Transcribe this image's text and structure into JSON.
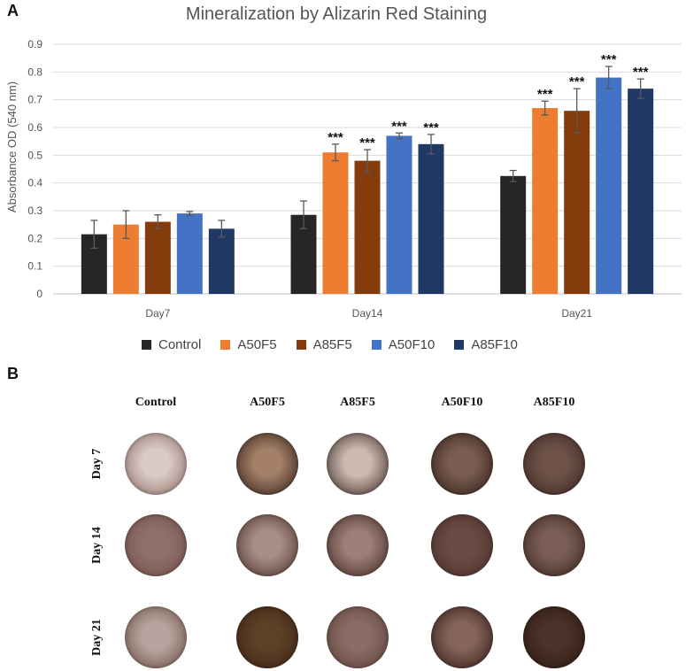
{
  "panel_a_letter": "A",
  "panel_b_letter": "B",
  "chart_data": {
    "type": "bar",
    "title": "Mineralization by Alizarin Red Staining",
    "xlabel": "",
    "ylabel": "Absorbance OD (540 nm)",
    "ylim": [
      0,
      0.9
    ],
    "yticks": [
      "0",
      "0.1",
      "0.2",
      "0.3",
      "0.4",
      "0.5",
      "0.6",
      "0.7",
      "0.8",
      "0.9"
    ],
    "grid": true,
    "legend_position": "bottom",
    "categories": [
      "Day7",
      "Day14",
      "Day21"
    ],
    "series": [
      {
        "name": "Control",
        "color": "#262626",
        "values": [
          0.215,
          0.285,
          0.425
        ],
        "errors": [
          0.05,
          0.05,
          0.02
        ],
        "significance": [
          "",
          "",
          ""
        ]
      },
      {
        "name": "A50F5",
        "color": "#ed7d31",
        "values": [
          0.25,
          0.51,
          0.67
        ],
        "errors": [
          0.05,
          0.03,
          0.025
        ],
        "significance": [
          "",
          "***",
          "***"
        ]
      },
      {
        "name": "A85F5",
        "color": "#843c0c",
        "values": [
          0.26,
          0.48,
          0.66
        ],
        "errors": [
          0.025,
          0.04,
          0.08
        ],
        "significance": [
          "",
          "***",
          "***"
        ]
      },
      {
        "name": "A50F10",
        "color": "#4472c4",
        "values": [
          0.29,
          0.57,
          0.78
        ],
        "errors": [
          0.007,
          0.01,
          0.04
        ],
        "significance": [
          "",
          "***",
          "***"
        ]
      },
      {
        "name": "A85F10",
        "color": "#203864",
        "values": [
          0.235,
          0.54,
          0.74
        ],
        "errors": [
          0.03,
          0.035,
          0.035
        ],
        "significance": [
          "",
          "***",
          "***"
        ]
      }
    ]
  },
  "staining": {
    "columns": [
      "Control",
      "A50F5",
      "A85F5",
      "A50F10",
      "A85F10"
    ],
    "rows": [
      "Day 7",
      "Day 14",
      "Day 21"
    ],
    "wells": [
      [
        {
          "rim": "#8c6a62",
          "center": "#d9cbc6"
        },
        {
          "rim": "#2d1b14",
          "center": "#a48068"
        },
        {
          "rim": "#3a2620",
          "center": "#cbb9b2"
        },
        {
          "rim": "#2f1c16",
          "center": "#7a5d50"
        },
        {
          "rim": "#3b2720",
          "center": "#6e5248"
        }
      ],
      [
        {
          "rim": "#6e4e48",
          "center": "#8f716b"
        },
        {
          "rim": "#4a2f28",
          "center": "#a88e86"
        },
        {
          "rim": "#3f2821",
          "center": "#9c7f77"
        },
        {
          "rim": "#4a3028",
          "center": "#6a4c44"
        },
        {
          "rim": "#3a2420",
          "center": "#7a5e55"
        }
      ],
      [
        {
          "rim": "#6a4d47",
          "center": "#b8a49e"
        },
        {
          "rim": "#3a2215",
          "center": "#5e4025"
        },
        {
          "rim": "#5c3f38",
          "center": "#8a6e66"
        },
        {
          "rim": "#2e1a14",
          "center": "#86645a"
        },
        {
          "rim": "#2a1812",
          "center": "#4c3229"
        }
      ]
    ]
  }
}
